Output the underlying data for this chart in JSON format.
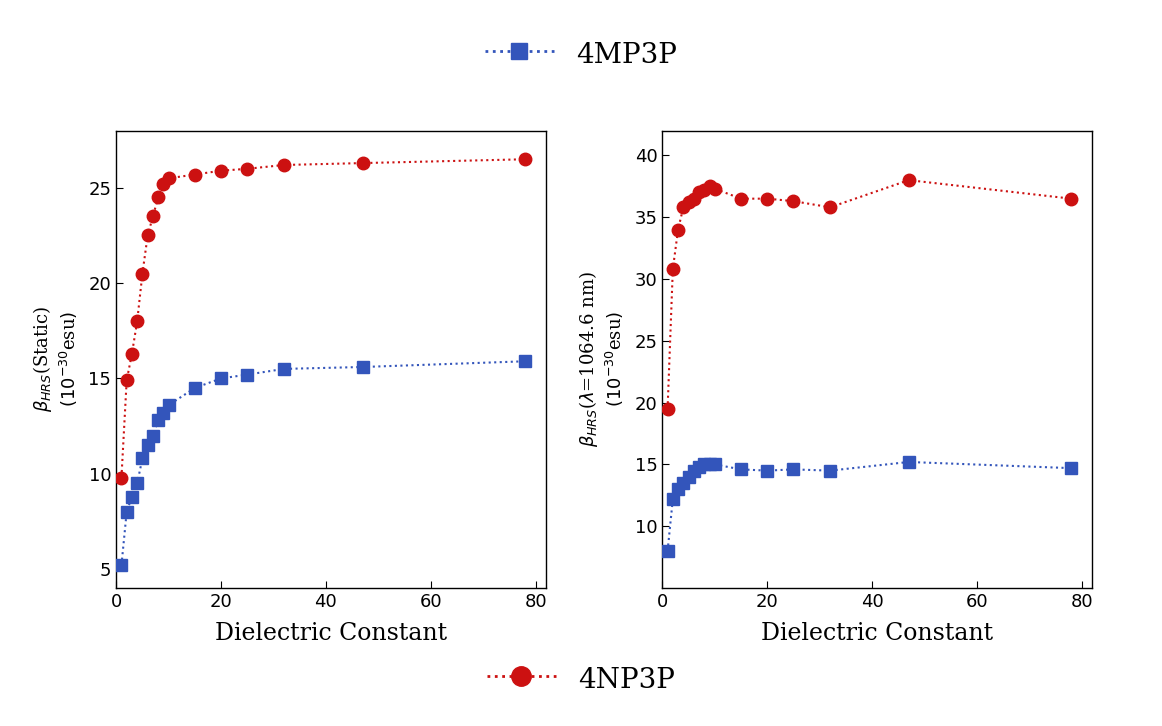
{
  "x_values": [
    1,
    2,
    3,
    4,
    5,
    6,
    7,
    8,
    9,
    10,
    15,
    20,
    25,
    32,
    47,
    78
  ],
  "blue_static": [
    5.2,
    8.0,
    8.8,
    9.5,
    10.8,
    11.5,
    12.0,
    12.8,
    13.2,
    13.6,
    14.5,
    15.0,
    15.2,
    15.5,
    15.6,
    15.9
  ],
  "red_static": [
    9.8,
    14.9,
    16.3,
    18.0,
    20.5,
    22.5,
    23.5,
    24.5,
    25.2,
    25.5,
    25.7,
    25.9,
    26.0,
    26.2,
    26.3,
    26.5
  ],
  "blue_dynamic": [
    8.0,
    12.2,
    13.0,
    13.5,
    14.0,
    14.5,
    14.8,
    15.0,
    15.0,
    15.0,
    14.6,
    14.5,
    14.6,
    14.5,
    15.2,
    14.7
  ],
  "red_dynamic": [
    19.5,
    30.8,
    34.0,
    35.8,
    36.2,
    36.5,
    37.0,
    37.2,
    37.5,
    37.3,
    36.5,
    36.5,
    36.3,
    35.8,
    38.0,
    36.5
  ],
  "blue_color": "#3355BB",
  "red_color": "#CC1111",
  "xlabel": "Dielectric Constant",
  "ylabel_static": "$\\beta_{HRS}$(Static)\n$(10^{-30}$esu$)$",
  "ylabel_dynamic": "$\\beta_{HRS}$($\\lambda$=1064.6 nm)\n$(10^{-30}$esu$)$",
  "xlim": [
    0,
    82
  ],
  "ylim_static": [
    4,
    28
  ],
  "ylim_dynamic": [
    5,
    42
  ],
  "xticks": [
    0,
    20,
    40,
    60,
    80
  ],
  "yticks_static": [
    5,
    10,
    15,
    20,
    25
  ],
  "yticks_dynamic": [
    10,
    15,
    20,
    25,
    30,
    35,
    40
  ],
  "legend_top_label": "4MP3P",
  "legend_bottom_label": "4NP3P",
  "bg_color": "#FFFFFF",
  "fig_width": 11.62,
  "fig_height": 7.26,
  "fig_dpi": 100
}
